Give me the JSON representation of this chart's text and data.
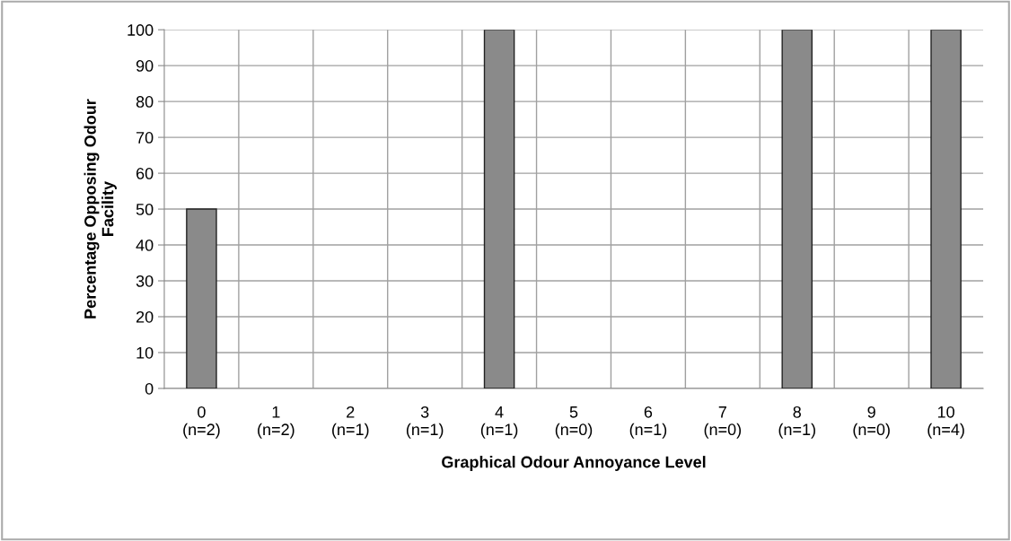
{
  "chart_data": {
    "type": "bar",
    "xlabel": "Graphical Odour Annoyance Level",
    "ylabel": "Percentage Opposing Odour\nFacility",
    "categories": [
      "0\n(n=2)",
      "1\n(n=2)",
      "2\n(n=1)",
      "3\n(n=1)",
      "4\n(n=1)",
      "5\n(n=0)",
      "6\n(n=1)",
      "7\n(n=0)",
      "8\n(n=1)",
      "9\n(n=0)",
      "10\n(n=4)"
    ],
    "values": [
      50,
      0,
      0,
      0,
      100,
      0,
      0,
      0,
      100,
      0,
      100
    ],
    "color": "#8a8a8a",
    "ylim": [
      0,
      100
    ],
    "yticks": [
      0,
      10,
      20,
      30,
      40,
      50,
      60,
      70,
      80,
      90,
      100
    ],
    "grid": true,
    "legend": false
  }
}
